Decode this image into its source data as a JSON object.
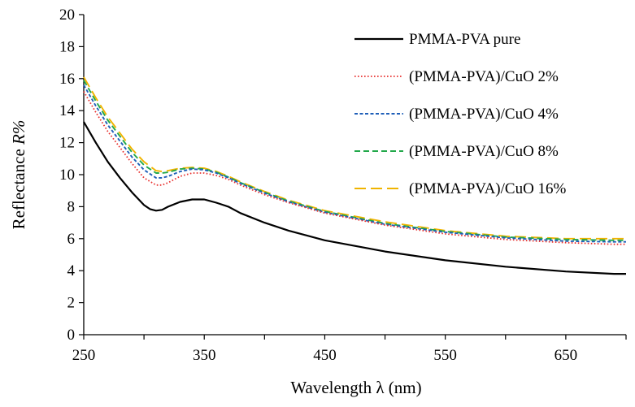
{
  "chart_data": {
    "type": "line",
    "xlabel": "Wavelength λ (nm)",
    "ylabel_main": "Reflectance ",
    "ylabel_symbol": "R%",
    "xlim": [
      250,
      700
    ],
    "ylim": [
      0,
      20
    ],
    "xticks": [
      250,
      350,
      450,
      550,
      650
    ],
    "yticks": [
      0,
      2,
      4,
      6,
      8,
      10,
      12,
      14,
      16,
      18,
      20
    ],
    "grid": false,
    "legend_position": "top-right",
    "series": [
      {
        "name": "PMMA-PVA pure",
        "color": "#000000",
        "dash": "solid",
        "x": [
          250,
          260,
          270,
          280,
          290,
          300,
          305,
          310,
          315,
          320,
          330,
          340,
          350,
          360,
          370,
          380,
          400,
          420,
          450,
          500,
          550,
          600,
          650,
          690,
          700
        ],
        "y": [
          13.3,
          12.0,
          10.8,
          9.8,
          8.9,
          8.1,
          7.85,
          7.75,
          7.8,
          8.0,
          8.3,
          8.45,
          8.45,
          8.25,
          8.0,
          7.6,
          7.0,
          6.5,
          5.9,
          5.2,
          4.65,
          4.25,
          3.95,
          3.8,
          3.8
        ]
      },
      {
        "name": "(PMMA-PVA)/CuO 2%",
        "color": "#e8312f",
        "dash": "dotted",
        "x": [
          250,
          260,
          270,
          280,
          290,
          300,
          310,
          315,
          320,
          330,
          340,
          350,
          360,
          370,
          380,
          400,
          420,
          450,
          500,
          550,
          600,
          650,
          690,
          700
        ],
        "y": [
          15.2,
          13.9,
          12.7,
          11.7,
          10.7,
          9.8,
          9.35,
          9.35,
          9.5,
          9.9,
          10.1,
          10.1,
          9.95,
          9.7,
          9.35,
          8.75,
          8.25,
          7.6,
          6.85,
          6.3,
          5.95,
          5.75,
          5.65,
          5.65
        ]
      },
      {
        "name": "(PMMA-PVA)/CuO 4%",
        "color": "#1f5fb8",
        "dash": "dashed-fine",
        "x": [
          250,
          260,
          270,
          280,
          290,
          300,
          310,
          315,
          320,
          330,
          340,
          350,
          360,
          370,
          380,
          400,
          420,
          450,
          500,
          550,
          600,
          650,
          690,
          700
        ],
        "y": [
          15.6,
          14.3,
          13.1,
          12.1,
          11.1,
          10.3,
          9.8,
          9.8,
          9.9,
          10.2,
          10.35,
          10.3,
          10.1,
          9.8,
          9.45,
          8.85,
          8.3,
          7.65,
          6.9,
          6.4,
          6.05,
          5.85,
          5.8,
          5.8
        ]
      },
      {
        "name": "(PMMA-PVA)/CuO 8%",
        "color": "#22a84a",
        "dash": "dashed",
        "x": [
          250,
          260,
          270,
          280,
          290,
          300,
          310,
          315,
          320,
          330,
          340,
          350,
          360,
          370,
          380,
          400,
          420,
          450,
          500,
          550,
          600,
          650,
          690,
          700
        ],
        "y": [
          15.9,
          14.6,
          13.4,
          12.4,
          11.4,
          10.6,
          10.1,
          10.1,
          10.15,
          10.35,
          10.4,
          10.35,
          10.15,
          9.85,
          9.5,
          8.9,
          8.35,
          7.7,
          6.95,
          6.45,
          6.1,
          5.95,
          5.9,
          5.9
        ]
      },
      {
        "name": "(PMMA-PVA)/CuO 16%",
        "color": "#f0b400",
        "dash": "long-dash",
        "x": [
          250,
          260,
          270,
          280,
          290,
          300,
          310,
          315,
          320,
          330,
          340,
          350,
          360,
          370,
          380,
          400,
          420,
          450,
          500,
          550,
          600,
          650,
          690,
          700
        ],
        "y": [
          16.1,
          14.8,
          13.6,
          12.6,
          11.6,
          10.8,
          10.25,
          10.2,
          10.25,
          10.4,
          10.45,
          10.4,
          10.2,
          9.9,
          9.55,
          8.95,
          8.4,
          7.75,
          7.05,
          6.5,
          6.15,
          6.0,
          6.0,
          6.0
        ]
      }
    ]
  }
}
